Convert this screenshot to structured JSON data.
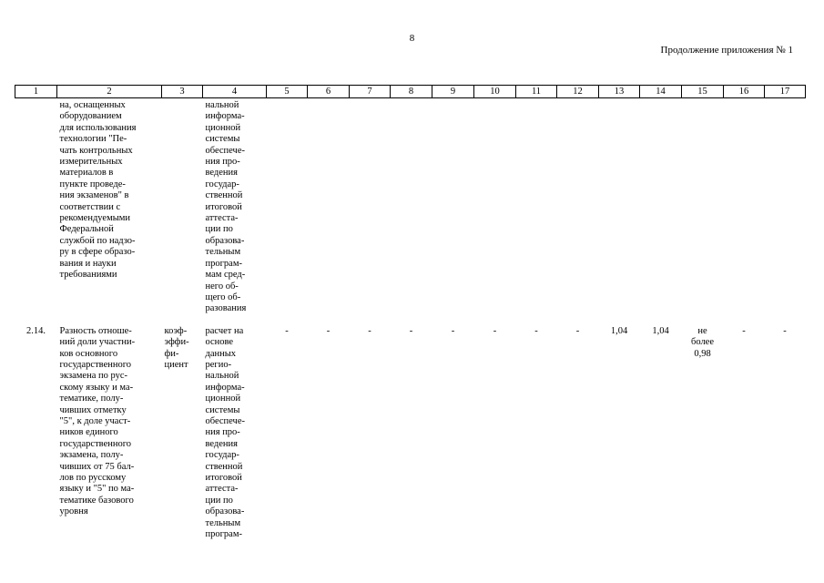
{
  "page_number": "8",
  "continuation": "Продолжение приложения № 1",
  "table": {
    "headers": [
      "1",
      "2",
      "3",
      "4",
      "5",
      "6",
      "7",
      "8",
      "9",
      "10",
      "11",
      "12",
      "13",
      "14",
      "15",
      "16",
      "17"
    ],
    "rows": [
      {
        "c1": "",
        "c2": "на, оснащенных\nоборудованием\nдля использования\nтехнологии \"Пе-\nчать контрольных\nизмерительных\nматериалов в\nпункте проведе-\nния экзаменов\" в\nсоответствии с\nрекомендуемыми\nФедеральной\nслужбой по надзо-\nру в сфере образо-\nвания и науки\nтребованиями",
        "c3": "",
        "c4": "нальной\nинформа-\nционной\nсистемы\nобеспече-\nния про-\nведения\nгосудар-\nственной\nитоговой\nаттеста-\nции по\nобразова-\nтельным\nпрограм-\nмам сред-\nнего об-\nщего об-\nразования",
        "values": [
          "",
          "",
          "",
          "",
          "",
          "",
          "",
          "",
          "",
          "",
          "",
          "",
          ""
        ]
      },
      {
        "c1": "2.14.",
        "c2": "Разность отноше-\nний доли участни-\nков основного\nгосударственного\nэкзамена по рус-\nскому языку и ма-\nтематике, полу-\nчивших отметку\n\"5\", к доле участ-\nников единого\nгосударственного\nэкзамена, полу-\nчивших от 75 бал-\nлов по русскому\nязыку и \"5\" по ма-\nтематике базового\nуровня",
        "c3": "коэф-\nэффи-\nфи-\nциент",
        "c4": "расчет на\nоснове\nданных\nрегио-\nнальной\nинформа-\nционной\nсистемы\nобеспече-\nния про-\nведения\nгосудар-\nственной\nитоговой\nаттеста-\nции по\nобразова-\nтельным\nпрограм-",
        "values": [
          "-",
          "-",
          "-",
          "-",
          "-",
          "-",
          "-",
          "-",
          "1,04",
          "1,04",
          "не\nболее\n0,98",
          "-",
          "-"
        ]
      }
    ]
  }
}
